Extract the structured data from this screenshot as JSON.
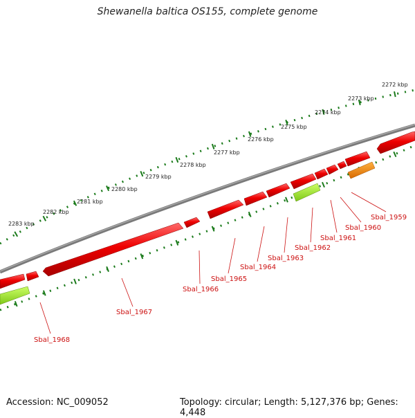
{
  "title": "Shewanella baltica OS155, complete genome",
  "accession": "Accession: NC_009052",
  "topology": "Topology: circular; Length: 5,127,376 bp; Genes: 4,448",
  "colors": {
    "gene": "#e80000",
    "gene_light": "#ff4a4a",
    "rna": "#99ee22",
    "orange": "#ff8c00",
    "backbone": "#7a7a7a",
    "ticks": "#1a7a1a",
    "label": "#cc1010"
  },
  "scale_labels": [
    "2283 kbp",
    "2282 kbp",
    "2281 kbp",
    "2280 kbp",
    "2279 kbp",
    "2278 kbp",
    "2277 kbp",
    "2276 kbp",
    "2275 kbp",
    "2274 kbp",
    "2273 kbp",
    "2272 kbp"
  ],
  "genes": [
    "Sbal_1968",
    "Sbal_1967",
    "Sbal_1966",
    "Sbal_1965",
    "Sbal_1964",
    "Sbal_1963",
    "Sbal_1962",
    "Sbal_1961",
    "Sbal_1960",
    "Sbal_1959"
  ]
}
